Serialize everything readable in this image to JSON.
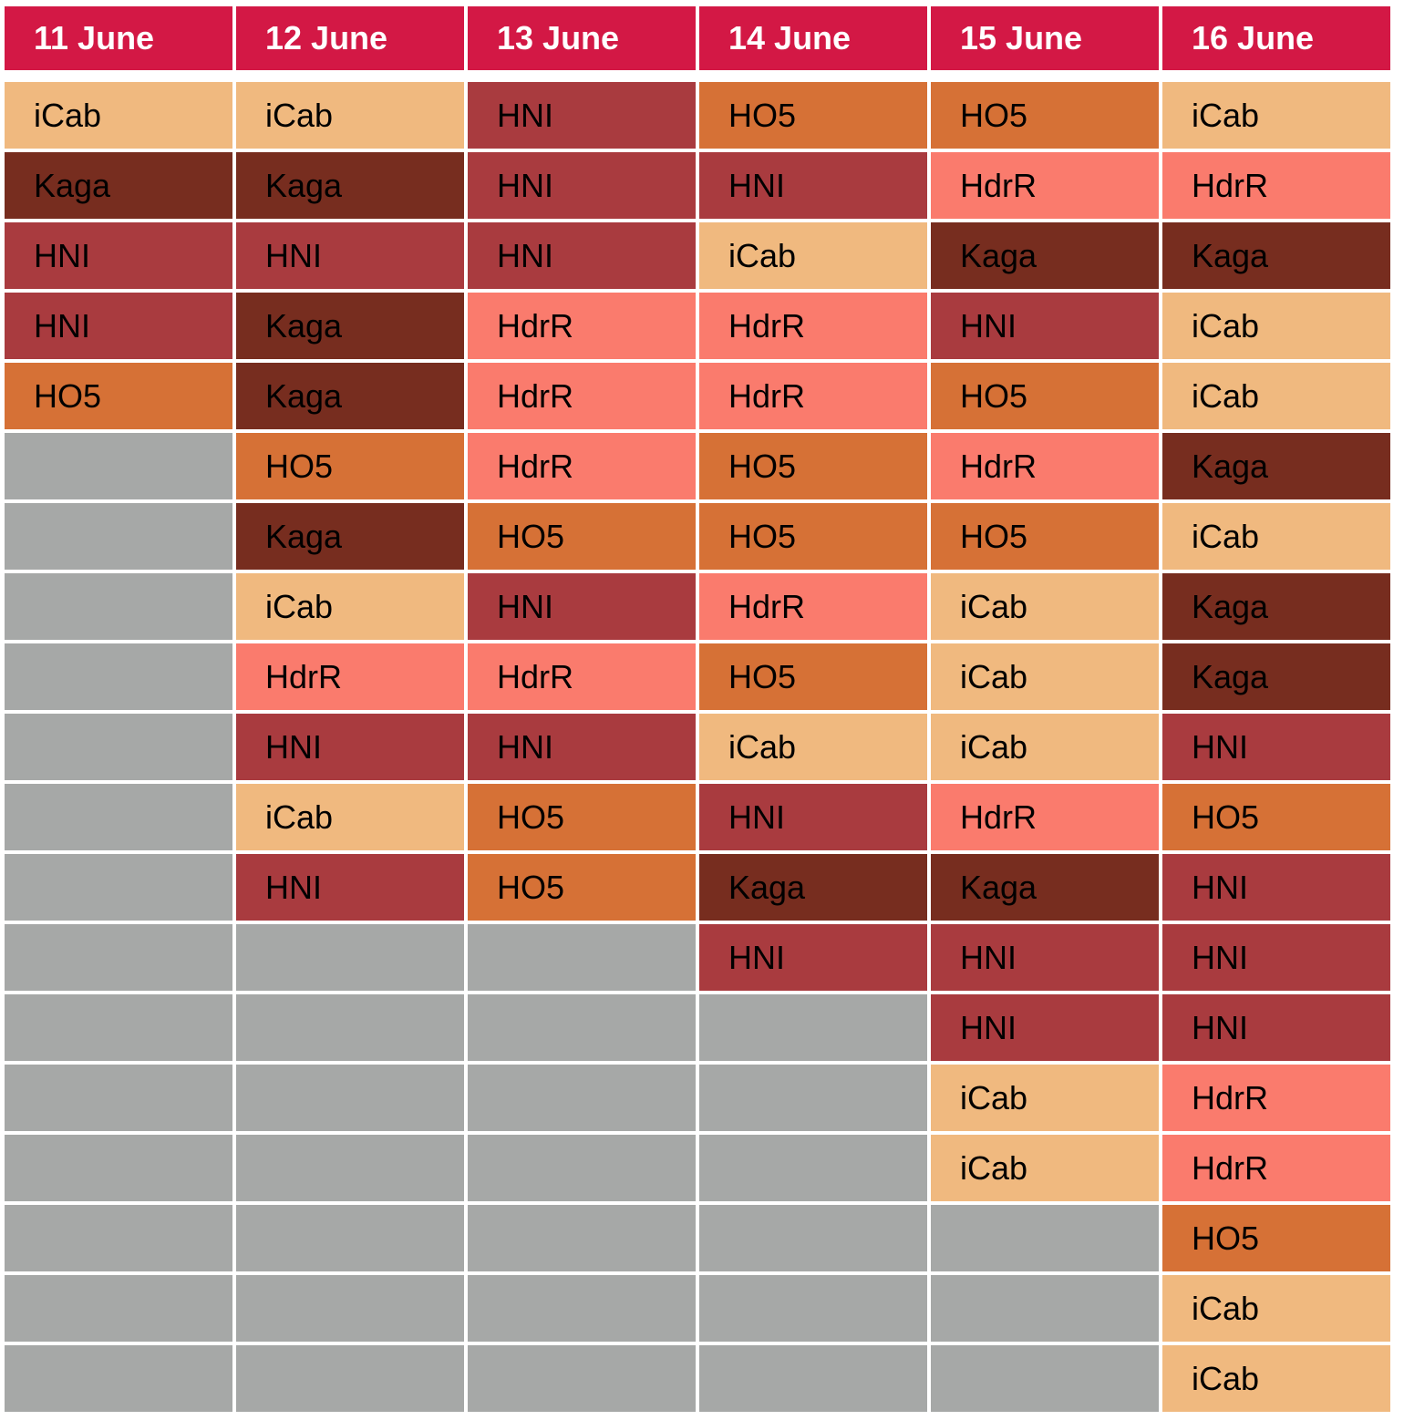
{
  "chart_data": {
    "type": "table",
    "columns": [
      "11 June",
      "12 June",
      "13 June",
      "14 June",
      "15 June",
      "16 June"
    ],
    "rows_per_column": 19,
    "cells": [
      [
        "iCab",
        "Kaga",
        "HNI",
        "HNI",
        "HO5"
      ],
      [
        "iCab",
        "Kaga",
        "HNI",
        "Kaga",
        "Kaga",
        "HO5",
        "Kaga",
        "iCab",
        "HdrR",
        "HNI",
        "iCab",
        "HNI"
      ],
      [
        "HNI",
        "HNI",
        "HNI",
        "HdrR",
        "HdrR",
        "HdrR",
        "HO5",
        "HNI",
        "HdrR",
        "HNI",
        "HO5",
        "HO5"
      ],
      [
        "HO5",
        "HNI",
        "iCab",
        "HdrR",
        "HdrR",
        "HO5",
        "HO5",
        "HdrR",
        "HO5",
        "iCab",
        "HNI",
        "Kaga",
        "HNI"
      ],
      [
        "HO5",
        "HdrR",
        "Kaga",
        "HNI",
        "HO5",
        "HdrR",
        "HO5",
        "iCab",
        "iCab",
        "iCab",
        "HdrR",
        "Kaga",
        "HNI",
        "HNI",
        "iCab",
        "iCab"
      ],
      [
        "iCab",
        "HdrR",
        "Kaga",
        "iCab",
        "iCab",
        "Kaga",
        "iCab",
        "Kaga",
        "Kaga",
        "HNI",
        "HO5",
        "HNI",
        "HNI",
        "HNI",
        "HdrR",
        "HdrR",
        "HO5",
        "iCab",
        "iCab"
      ]
    ]
  },
  "colors": {
    "header": "#d31845",
    "empty": "#a6a8a7",
    "categories": {
      "iCab": "#f0b97f",
      "Kaga": "#772d1f",
      "HNI": "#a93b3f",
      "HO5": "#d67136",
      "HdrR": "#fa7b6d"
    }
  }
}
